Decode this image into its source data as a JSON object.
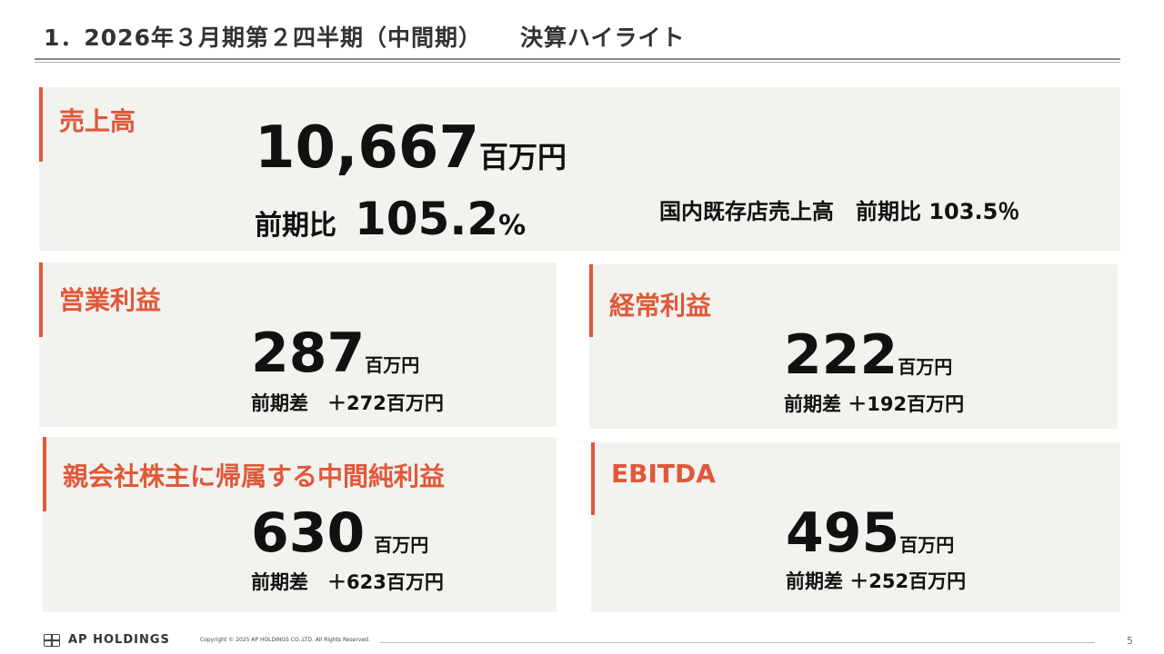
{
  "header": {
    "title_main": "1．2026年３月期第２四半期（中間期）",
    "title_sub": "決算ハイライト"
  },
  "sales": {
    "label": "売上高",
    "value": "10,667",
    "unit": "百万円",
    "ratio_label": "前期比",
    "ratio_value": "105.2",
    "ratio_unit": "%",
    "existing_store": "国内既存店売上高　前期比 103.5％"
  },
  "operating_profit": {
    "label": "営業利益",
    "value": "287",
    "unit": "百万円",
    "diff": "前期差　＋272百万円"
  },
  "ordinary_profit": {
    "label": "経常利益",
    "value": "222",
    "unit": "百万円",
    "diff": "前期差 ＋192百万円"
  },
  "net_profit": {
    "label": "親会社株主に帰属する中間純利益",
    "value": "630",
    "unit": "百万円",
    "diff": "前期差　＋623百万円"
  },
  "ebitda": {
    "label": "EBITDA",
    "value": "495",
    "unit": "百万円",
    "diff": "前期差 ＋252百万円"
  },
  "footer": {
    "logo_text": "AP HOLDINGS",
    "copyright": "Copyright © 2025 AP HOLDINGS CO.,LTD.  All Rights Reserved.",
    "page": "5"
  },
  "colors": {
    "accent": "#e0583a",
    "card_bg": "#f2f2ee"
  }
}
